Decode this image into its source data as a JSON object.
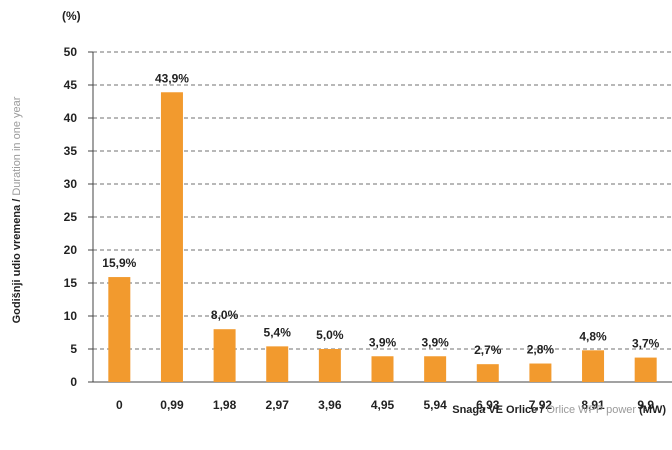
{
  "chart_data": {
    "type": "bar",
    "unit_label": "(%)",
    "ylabel": {
      "primary": "Godišnji udio vremena /",
      "secondary": "Duration in one year"
    },
    "xlabel": {
      "primary": "Snaga VE Orlice /",
      "secondary": "Orlice WPP power",
      "unit": "(MW)"
    },
    "categories": [
      "0",
      "0,99",
      "1,98",
      "2,97",
      "3,96",
      "4,95",
      "5,94",
      "6,93",
      "7,92",
      "8,91",
      "9,9"
    ],
    "values": [
      15.9,
      43.9,
      8.0,
      5.4,
      5.0,
      3.9,
      3.9,
      2.7,
      2.8,
      4.8,
      3.7
    ],
    "data_labels": [
      "15,9%",
      "43,9%",
      "8,0%",
      "5,4%",
      "5,0%",
      "3,9%",
      "3,9%",
      "2,7%",
      "2,8%",
      "4,8%",
      "3,7%"
    ],
    "ylim": [
      0,
      50
    ],
    "yticks": [
      "0",
      "5",
      "10",
      "15",
      "20",
      "25",
      "30",
      "35",
      "40",
      "45",
      "50"
    ],
    "grid": true,
    "bar_color": "#f29a2e"
  }
}
